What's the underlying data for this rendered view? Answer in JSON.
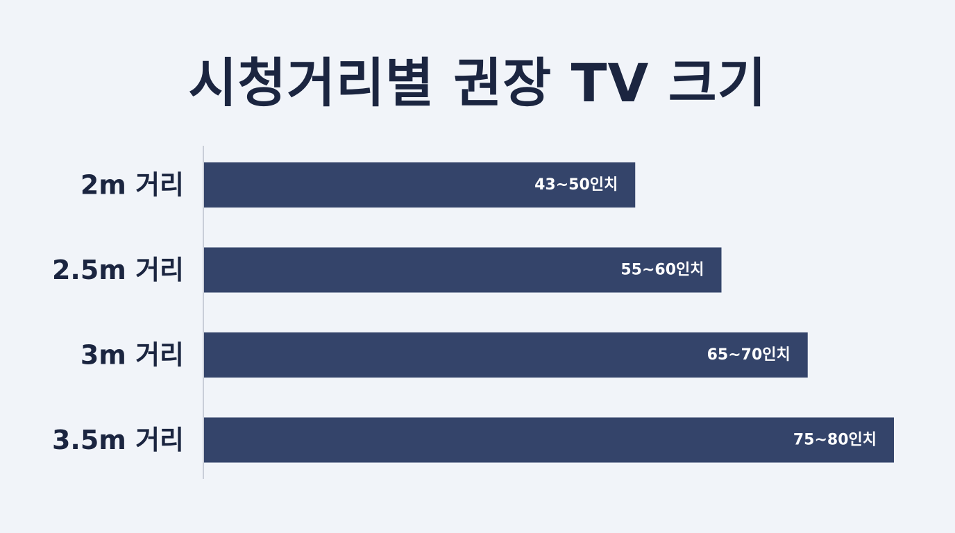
{
  "chart_data": {
    "type": "bar",
    "orientation": "horizontal",
    "title": "시청거리별 권장 TV 크기",
    "categories": [
      "2m 거리",
      "2.5m 거리",
      "3m 거리",
      "3.5m 거리"
    ],
    "series": [
      {
        "values": [
          50,
          60,
          70,
          80
        ]
      }
    ],
    "value_ranges": [
      [
        43,
        50
      ],
      [
        55,
        60
      ],
      [
        65,
        70
      ],
      [
        75,
        80
      ]
    ],
    "data_labels": [
      "43~50인치",
      "55~60인치",
      "65~70인치",
      "75~80인치"
    ],
    "xlabel": "",
    "ylabel": "",
    "grid": false,
    "legend": "none",
    "colors": {
      "bar": "#34446a",
      "axis": "#c9ced8",
      "background": "#f1f4f9",
      "text": "#1b2540",
      "bar_label": "#ffffff"
    }
  }
}
